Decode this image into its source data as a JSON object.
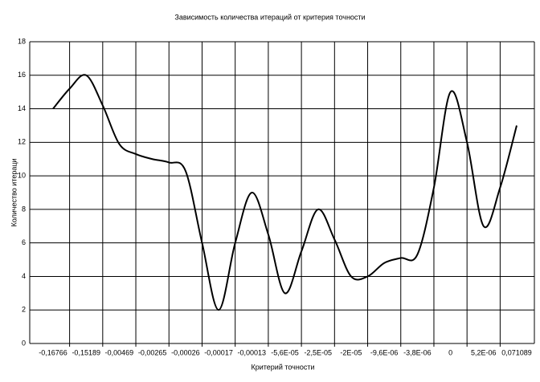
{
  "chart_data": {
    "type": "line",
    "title": "Зависимость количества итераций от критерия точности",
    "x_label": "Критерий точности",
    "y_label": "Количество итераци",
    "categories": [
      "-0,16766",
      null,
      "-0,15189",
      null,
      "-0,00469",
      null,
      "-0,00265",
      null,
      "-0,00026",
      null,
      "-0,00017",
      null,
      "-0,00013",
      null,
      "-5,6E-05",
      null,
      "-2,5E-05",
      null,
      "-2E-05",
      null,
      "-9,6E-06",
      null,
      "-3,8E-06",
      null,
      "0",
      null,
      "5,2E-06",
      null,
      "0,071089"
    ],
    "series": [
      {
        "name": "Количество итераций",
        "color": "#000000",
        "values": [
          14,
          15.2,
          16,
          14.2,
          11.9,
          11.3,
          11,
          10.8,
          10.3,
          6,
          2,
          6,
          9,
          6.5,
          3,
          5.5,
          8,
          6.2,
          4,
          4,
          4.8,
          5.1,
          5.3,
          9.3,
          15,
          12,
          7,
          9.3,
          13
        ]
      }
    ],
    "ylim": [
      0,
      18
    ],
    "yticks": [
      0,
      2,
      4,
      6,
      8,
      10,
      12,
      14,
      16,
      18
    ],
    "grid": true
  }
}
